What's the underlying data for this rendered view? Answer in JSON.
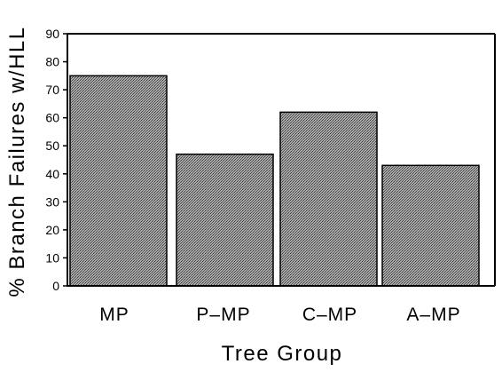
{
  "chart_data": {
    "type": "bar",
    "categories": [
      "MP",
      "P–MP",
      "C–MP",
      "A–MP"
    ],
    "values": [
      75,
      47,
      62,
      43
    ],
    "title": "",
    "xlabel": "Tree Group",
    "ylabel": "% Branch Failures w/HLL",
    "ylim": [
      0,
      90
    ],
    "yticks": [
      0,
      10,
      20,
      30,
      40,
      50,
      60,
      70,
      80,
      90
    ],
    "grid": false,
    "bar_color": "#8c8c8c",
    "bar_edge_color": "#000000"
  }
}
